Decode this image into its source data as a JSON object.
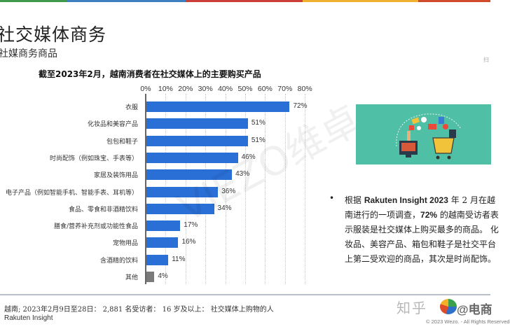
{
  "header": {
    "stripe_colors": [
      "#3f9a4b",
      "#3d7fc1",
      "#cc3e3a",
      "#efb12f",
      "#d24a2c"
    ],
    "stripe_widths": [
      95,
      170,
      167,
      165,
      103
    ],
    "title": "社交媒体商务",
    "subtitle": "社媒商务商品",
    "corner_mark": "扫"
  },
  "chart_data": {
    "type": "bar",
    "orientation": "horizontal",
    "title": "截至2023年2月，越南消费者在社交媒体上的主要购买产品",
    "xlabel": "",
    "ylabel": "",
    "xlim": [
      0,
      80
    ],
    "x_ticks": [
      "0%",
      "10%",
      "20%",
      "30%",
      "40%",
      "50%",
      "60%",
      "70%",
      "80%"
    ],
    "grid": true,
    "categories": [
      "衣服",
      "化妆品和美容产品",
      "包包和鞋子",
      "时尚配饰（例如珠宝、手表等）",
      "家居及装饰用品",
      "电子产品（例如智能手机、智能手表、耳机等）",
      "食品、零食和非酒精饮料",
      "膳食/营养补充剂或功能性食品",
      "宠物用品",
      "含酒精的饮料",
      "其他"
    ],
    "values": [
      72,
      51,
      51,
      46,
      43,
      36,
      34,
      17,
      16,
      11,
      4
    ],
    "value_labels": [
      "72%",
      "51%",
      "51%",
      "46%",
      "43%",
      "36%",
      "34%",
      "17%",
      "16%",
      "11%",
      "4%"
    ],
    "bar_colors": [
      "#2a6fd6",
      "#2a6fd6",
      "#2a6fd6",
      "#2a6fd6",
      "#2a6fd6",
      "#2a6fd6",
      "#2a6fd6",
      "#2a6fd6",
      "#2a6fd6",
      "#2a6fd6",
      "#7a7a7a"
    ]
  },
  "watermark": "VIEZO维卓",
  "side": {
    "image_alt": "online-shopping-illustration",
    "bullet": "•",
    "text_parts": [
      "根据 ",
      "Rakuten Insight 2023",
      " 年 2 月在越南进行的一项调查，",
      "72%",
      " 的越南受访者表示服装是社交媒体上购买最多的商品。 化妆品、美容产品、箱包和鞋子是社交平台上第二受欢迎的商品，其次是时尚配饰。"
    ]
  },
  "footer": {
    "source_line": "越南; 2023年2月9日至28日： 2,881 名受访者： 16 岁及以上： 社交媒体上购物的人",
    "source_name": "Rakuten Insight",
    "zhihu": "知乎",
    "logo_text": "@电商",
    "copyright": "© 2023 Wezo. - All Rights Reserved"
  }
}
